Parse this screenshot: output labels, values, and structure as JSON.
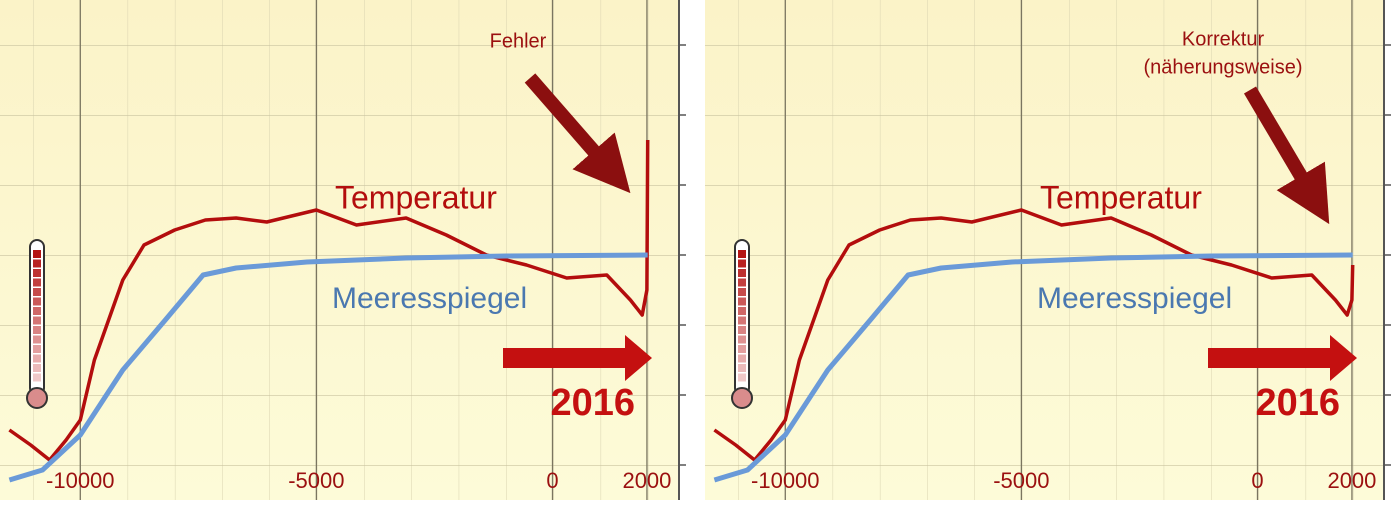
{
  "chart_data": [
    {
      "type": "line",
      "xlim": [
        -11700,
        2700
      ],
      "ylim": [
        0,
        10
      ],
      "xticks": [
        -10000,
        -5000,
        0,
        2000
      ],
      "series": [
        {
          "name": "Temperatur",
          "color": "#b30d0d",
          "x": [
            -11500,
            -11050,
            -10650,
            -10300,
            -10000,
            -9700,
            -9400,
            -9100,
            -8650,
            -8000,
            -7350,
            -6700,
            -6050,
            -5000,
            -4150,
            -3100,
            -2250,
            -1400,
            -550,
            300,
            1150,
            1650,
            1900,
            2000,
            2016
          ],
          "values": [
            1.4,
            1.1,
            0.8,
            1.2,
            1.6,
            2.8,
            3.6,
            4.4,
            5.1,
            5.4,
            5.6,
            5.64,
            5.56,
            5.8,
            5.5,
            5.64,
            5.3,
            4.9,
            4.7,
            4.44,
            4.5,
            4.0,
            3.7,
            4.2,
            7.2
          ]
        },
        {
          "name": "Meeresspiegel",
          "color": "#6a9ad8",
          "x": [
            -11500,
            -10800,
            -10000,
            -9100,
            -8200,
            -7400,
            -6700,
            -5200,
            -3100,
            -1000,
            2016
          ],
          "values": [
            0.4,
            0.6,
            1.3,
            2.6,
            3.6,
            4.5,
            4.64,
            4.76,
            4.84,
            4.88,
            4.9
          ]
        }
      ],
      "annotations": [
        "Fehler",
        "2016"
      ]
    },
    {
      "type": "line",
      "xlim": [
        -11700,
        2700
      ],
      "ylim": [
        0,
        10
      ],
      "xticks": [
        -10000,
        -5000,
        0,
        2000
      ],
      "series": [
        {
          "name": "Temperatur",
          "color": "#b30d0d",
          "x": [
            -11500,
            -11050,
            -10650,
            -10300,
            -10000,
            -9700,
            -9400,
            -9100,
            -8650,
            -8000,
            -7350,
            -6700,
            -6050,
            -5000,
            -4150,
            -3100,
            -2250,
            -1400,
            -550,
            300,
            1150,
            1650,
            1900,
            2000,
            2016
          ],
          "values": [
            1.4,
            1.1,
            0.8,
            1.2,
            1.6,
            2.8,
            3.6,
            4.4,
            5.1,
            5.4,
            5.6,
            5.64,
            5.56,
            5.8,
            5.5,
            5.64,
            5.3,
            4.9,
            4.7,
            4.44,
            4.5,
            4.0,
            3.7,
            4.0,
            4.7
          ]
        },
        {
          "name": "Meeresspiegel",
          "color": "#6a9ad8",
          "x": [
            -11500,
            -10800,
            -10000,
            -9100,
            -8200,
            -7400,
            -6700,
            -5200,
            -3100,
            -1000,
            2016
          ],
          "values": [
            0.4,
            0.6,
            1.3,
            2.6,
            3.6,
            4.5,
            4.64,
            4.76,
            4.84,
            4.88,
            4.9
          ]
        }
      ],
      "annotations": [
        "Korrektur",
        "(näherungsweise)",
        "2016"
      ]
    }
  ]
}
